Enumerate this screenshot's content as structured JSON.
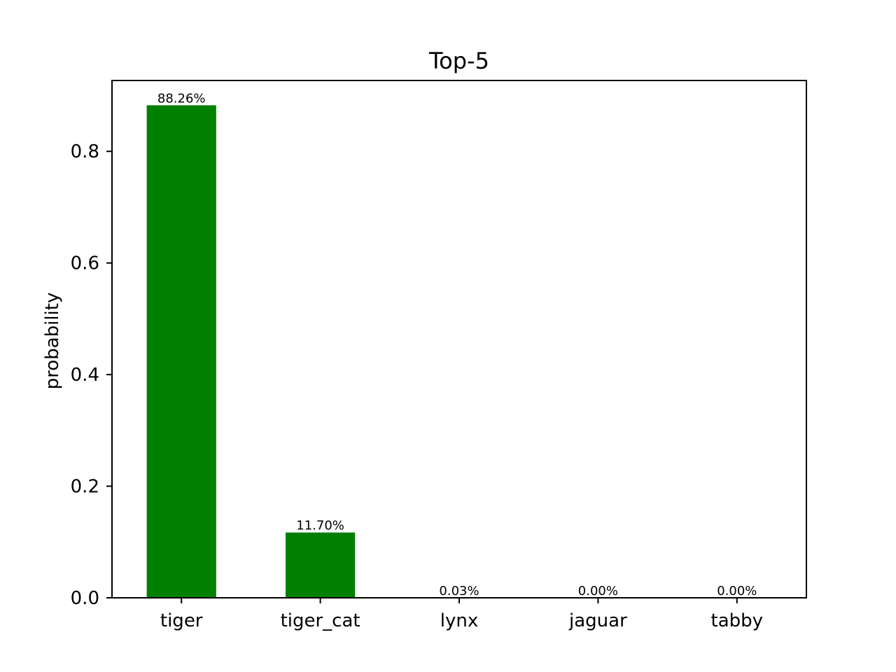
{
  "chart_data": {
    "type": "bar",
    "title": "Top-5",
    "xlabel": "",
    "ylabel": "probability",
    "categories": [
      "tiger",
      "tiger_cat",
      "lynx",
      "jaguar",
      "tabby"
    ],
    "values": [
      0.8826,
      0.117,
      0.0003,
      0.0,
      0.0
    ],
    "data_labels": [
      "88.26%",
      "11.70%",
      "0.03%",
      "0.00%",
      "0.00%"
    ],
    "ylim": [
      0,
      0.927
    ],
    "yticks": [
      0.0,
      0.2,
      0.4,
      0.6,
      0.8
    ],
    "ytick_labels": [
      "0.0",
      "0.2",
      "0.4",
      "0.6",
      "0.8"
    ],
    "grid": false,
    "bar_color": "#008000"
  }
}
